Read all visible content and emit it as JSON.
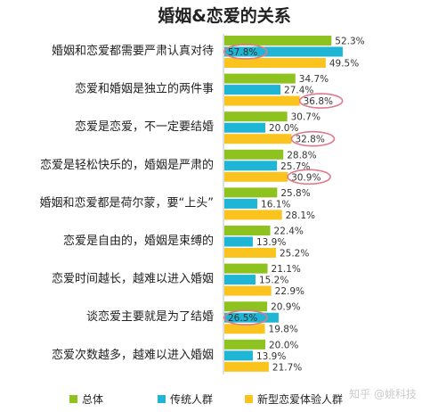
{
  "chart_data": {
    "type": "bar",
    "orientation": "horizontal",
    "title": "婚姻&恋爱的关系",
    "unit": "%",
    "categories": [
      "婚姻和恋爱都需要严肃认真对待",
      "恋爱和婚姻是独立的两件事",
      "恋爱是恋爱，不一定要结婚",
      "恋爱是轻松快乐的，婚姻是严肃的",
      "婚姻和恋爱都是荷尔蒙，要“上头”",
      "恋爱是自由的，婚姻是束缚的",
      "恋爱时间越长，越难以进入婚姻",
      "谈恋爱主要就是为了结婚",
      "恋爱次数越多，越难以进入婚姻"
    ],
    "series": [
      {
        "name": "总体",
        "color": "#8DC21F",
        "values": [
          52.3,
          34.7,
          30.7,
          28.8,
          25.8,
          22.4,
          21.1,
          20.9,
          20.0
        ]
      },
      {
        "name": "传统人群",
        "color": "#1FB6D6",
        "values": [
          57.8,
          27.4,
          20.0,
          25.7,
          16.1,
          13.9,
          15.2,
          26.5,
          13.9
        ]
      },
      {
        "name": "新型恋爱体验人群",
        "color": "#FBC31E",
        "values": [
          49.5,
          36.8,
          32.8,
          30.9,
          28.1,
          25.2,
          22.9,
          19.8,
          21.7
        ]
      }
    ],
    "highlighted": [
      {
        "category_index": 0,
        "series": "传统人群"
      },
      {
        "category_index": 1,
        "series": "新型恋爱体验人群"
      },
      {
        "category_index": 2,
        "series": "新型恋爱体验人群"
      },
      {
        "category_index": 3,
        "series": "新型恋爱体验人群"
      },
      {
        "category_index": 7,
        "series": "传统人群"
      }
    ],
    "legend_position": "bottom",
    "grid": false
  },
  "watermark": "知乎 @姚科技"
}
